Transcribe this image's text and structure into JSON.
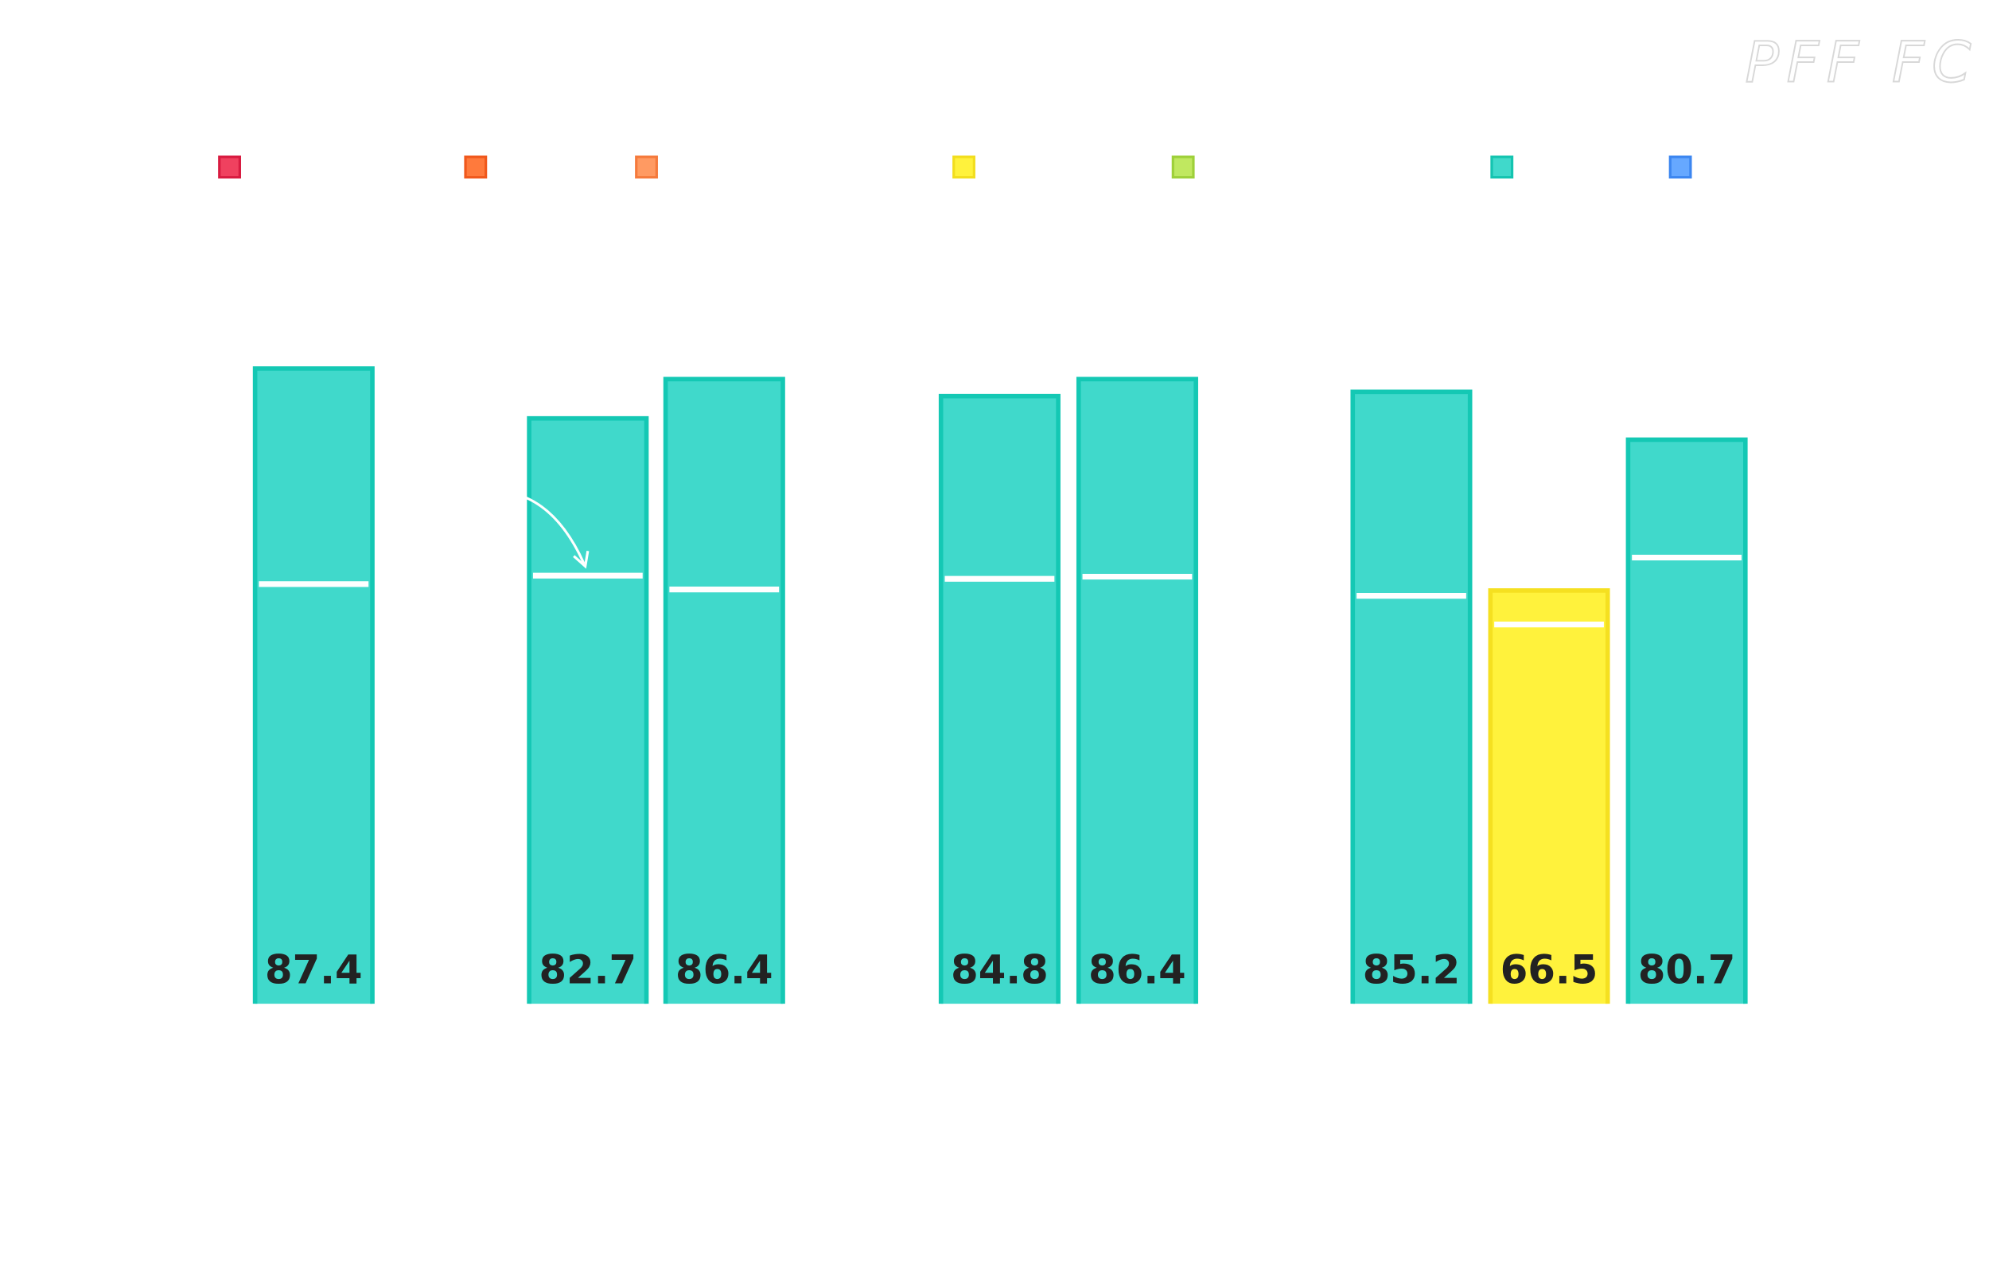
{
  "chart_data": {
    "type": "bar",
    "logo": "PFF FC",
    "values": [
      87.4,
      82.7,
      86.4,
      84.8,
      86.4,
      85.2,
      66.5,
      80.7
    ],
    "colors": [
      "#40d9cb",
      "#40d9cb",
      "#40d9cb",
      "#40d9cb",
      "#40d9cb",
      "#40d9cb",
      "#fff23c",
      "#40d9cb"
    ],
    "markers": [
      67.1,
      67.9,
      66.6,
      67.6,
      67.8,
      66.0,
      63.3,
      69.6
    ],
    "ylim": [
      27.6,
      100
    ]
  }
}
